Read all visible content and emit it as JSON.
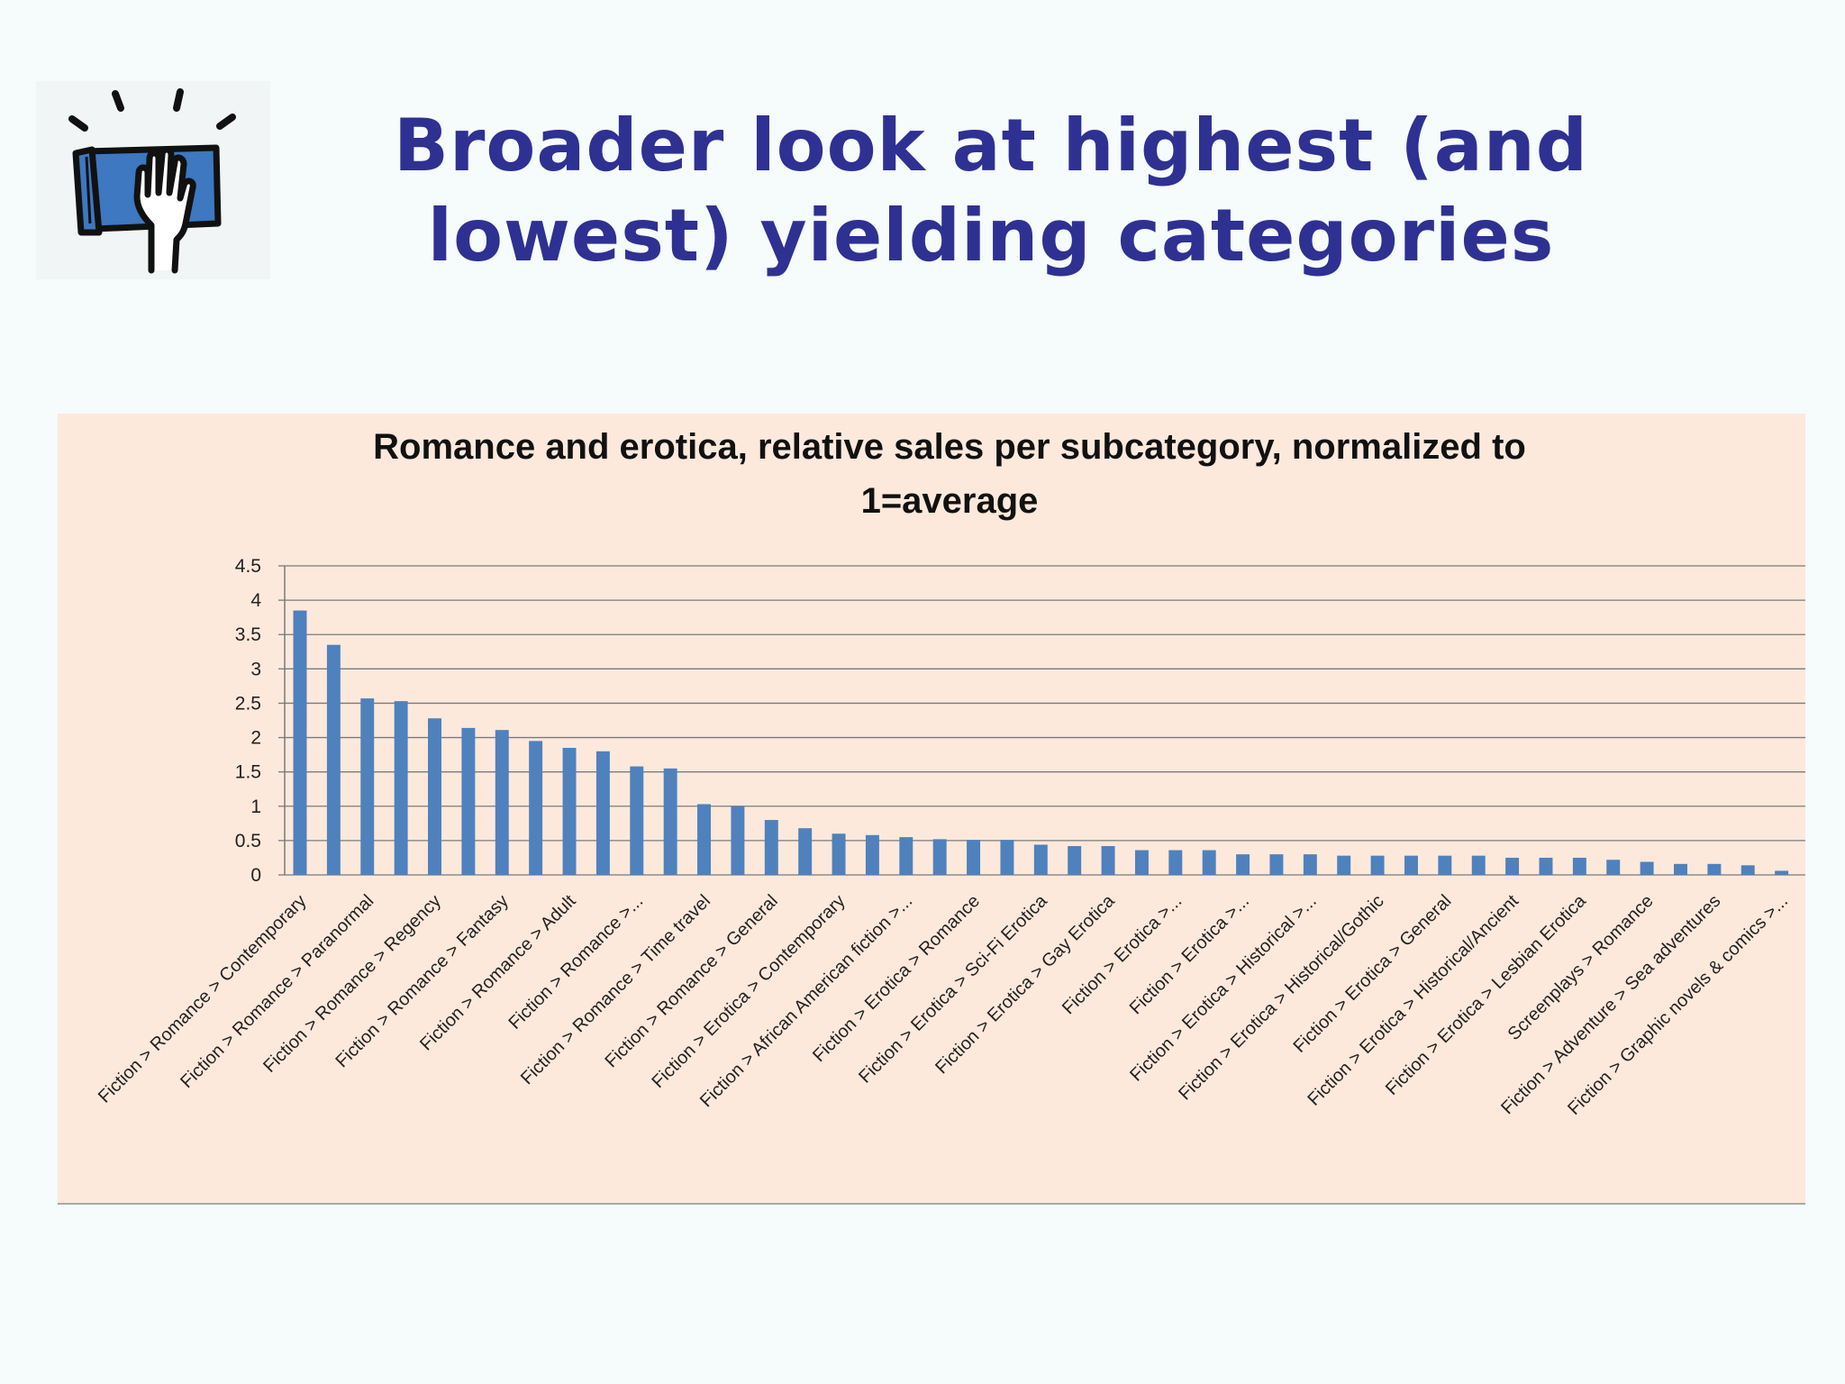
{
  "slide": {
    "title_line1": "Broader look at highest (and",
    "title_line2": "lowest) yielding categories",
    "logo_icon": "book-hand-icon"
  },
  "colors": {
    "title": "#2e3192",
    "bar": "#4f81bd",
    "panel": "#fde9dc"
  },
  "chart_data": {
    "type": "bar",
    "title": "Romance and erotica, relative sales per subcategory, normalized to 1=average",
    "title_line1": "Romance and erotica, relative sales per subcategory, normalized to",
    "title_line2": "1=average",
    "xlabel": "",
    "ylabel": "",
    "ylim": [
      0,
      4.5
    ],
    "yticks": [
      0,
      0.5,
      1,
      1.5,
      2,
      2.5,
      3,
      3.5,
      4,
      4.5
    ],
    "ytick_labels": [
      "0",
      "0.5",
      "1",
      "1.5",
      "2",
      "2.5",
      "3",
      "3.5",
      "4",
      "4.5"
    ],
    "grid": true,
    "legend": "none",
    "categories": [
      "Fiction > Romance > Contemporary",
      "",
      "Fiction > Romance > Paranormal",
      "",
      "Fiction > Romance > Regency",
      "",
      "Fiction > Romance > Fantasy",
      "",
      "Fiction > Romance > Adult",
      "",
      "Fiction > Romance >...",
      "",
      "Fiction > Romance > Time travel",
      "",
      "Fiction > Romance > General",
      "",
      "Fiction > Erotica > Contemporary",
      "",
      "Fiction > African American fiction >...",
      "",
      "Fiction > Erotica > Romance",
      "",
      "Fiction > Erotica > Sci-Fi Erotica",
      "",
      "Fiction > Erotica > Gay Erotica",
      "",
      "Fiction > Erotica >...",
      "",
      "Fiction > Erotica >...",
      "",
      "Fiction > Erotica > Historical >...",
      "",
      "Fiction > Erotica > Historical/Gothic",
      "",
      "Fiction > Erotica > General",
      "",
      "Fiction > Erotica > Historical/Ancient",
      "",
      "Fiction > Erotica > Lesbian Erotica",
      "",
      "Screenplays > Romance",
      "",
      "Fiction > Adventure > Sea adventures",
      "",
      "Fiction > Graphic novels & comics >..."
    ],
    "values": [
      3.85,
      3.35,
      2.57,
      2.53,
      2.28,
      2.14,
      2.11,
      1.95,
      1.85,
      1.8,
      1.58,
      1.55,
      1.03,
      1.0,
      0.8,
      0.68,
      0.6,
      0.58,
      0.55,
      0.52,
      0.51,
      0.51,
      0.44,
      0.42,
      0.42,
      0.36,
      0.36,
      0.36,
      0.3,
      0.3,
      0.3,
      0.28,
      0.28,
      0.28,
      0.28,
      0.28,
      0.25,
      0.25,
      0.25,
      0.22,
      0.19,
      0.16,
      0.16,
      0.14,
      0.06
    ]
  }
}
